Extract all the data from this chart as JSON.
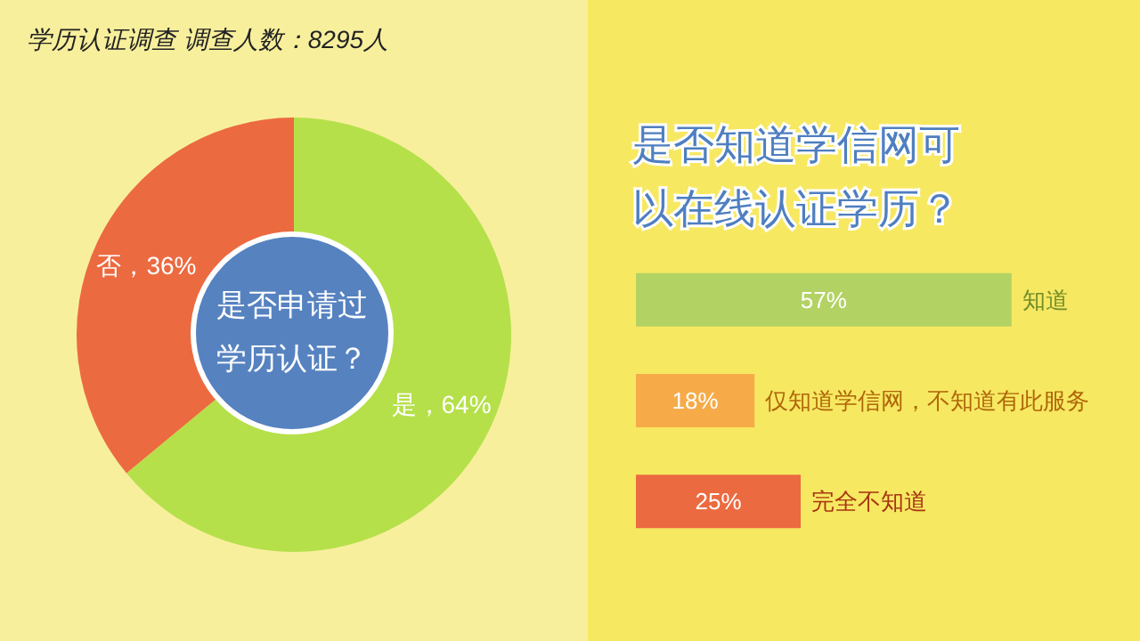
{
  "chart_data": [
    {
      "type": "donut",
      "title": "学历认证调查 调查人数：8295人",
      "subtitle": "是否申请过学历认证？",
      "categories": [
        "是",
        "否"
      ],
      "values": [
        64,
        36
      ],
      "colors": [
        "#b5e04a",
        "#ec6a40"
      ],
      "value_labels": [
        "64%",
        "36%"
      ],
      "legend": false
    },
    {
      "type": "bar",
      "orientation": "horizontal",
      "title": "是否知道学信网可以在线认证学历？",
      "categories": [
        "知道",
        "仅知道学信网，不知道有此服务",
        "完全不知道"
      ],
      "values": [
        57,
        18,
        25
      ],
      "colors": [
        "#b3d264",
        "#f6ab48",
        "#ec6a40"
      ],
      "value_labels": [
        "57%",
        "18%",
        "25%"
      ],
      "legend": false
    }
  ]
}
